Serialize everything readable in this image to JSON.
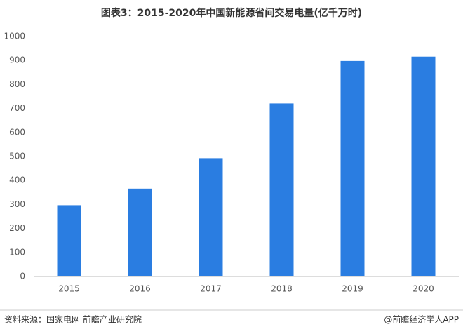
{
  "chart_data": {
    "type": "bar",
    "title": "图表3：2015-2020年中国新能源省间交易电量(亿千万时)",
    "categories": [
      "2015",
      "2016",
      "2017",
      "2018",
      "2019",
      "2020"
    ],
    "values": [
      297,
      366,
      493,
      721,
      898,
      916
    ],
    "color": "#2a7de1",
    "ylim": [
      0,
      1000
    ],
    "yticks": [
      0,
      100,
      200,
      300,
      400,
      500,
      600,
      700,
      800,
      900,
      1000
    ],
    "grid": false,
    "source": "资料来源：国家电网 前瞻产业研究院",
    "credit": "@前瞻经济学人APP"
  }
}
